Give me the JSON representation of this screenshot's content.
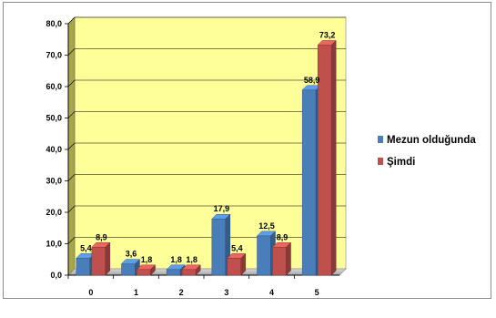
{
  "chart_data": {
    "type": "bar",
    "title": "",
    "xlabel": "",
    "ylabel": "",
    "categories": [
      "0",
      "1",
      "2",
      "3",
      "4",
      "5"
    ],
    "series": [
      {
        "name": "Mezun olduğunda",
        "values": [
          5.4,
          3.6,
          1.8,
          17.9,
          12.5,
          58.9
        ],
        "labels": [
          "5,4",
          "3,6",
          "1,8",
          "17,9",
          "12,5",
          "58,9"
        ],
        "color": "#4a7ebb"
      },
      {
        "name": "Şimdi",
        "values": [
          8.9,
          1.8,
          1.8,
          5.4,
          8.9,
          73.2
        ],
        "labels": [
          "8,9",
          "1,8",
          "1,8",
          "5,4",
          "8,9",
          "73,2"
        ],
        "color": "#c0504d"
      }
    ],
    "ylim": [
      0,
      80
    ],
    "yticks": [
      0,
      10,
      20,
      30,
      40,
      50,
      60,
      70,
      80
    ],
    "ytick_labels": [
      "0,0",
      "10,0",
      "20,0",
      "30,0",
      "40,0",
      "50,0",
      "60,0",
      "70,0",
      "80,0"
    ],
    "grid": true,
    "legend_position": "right",
    "plot_background": "#ffff99",
    "wall_color": "#a6a64c"
  }
}
